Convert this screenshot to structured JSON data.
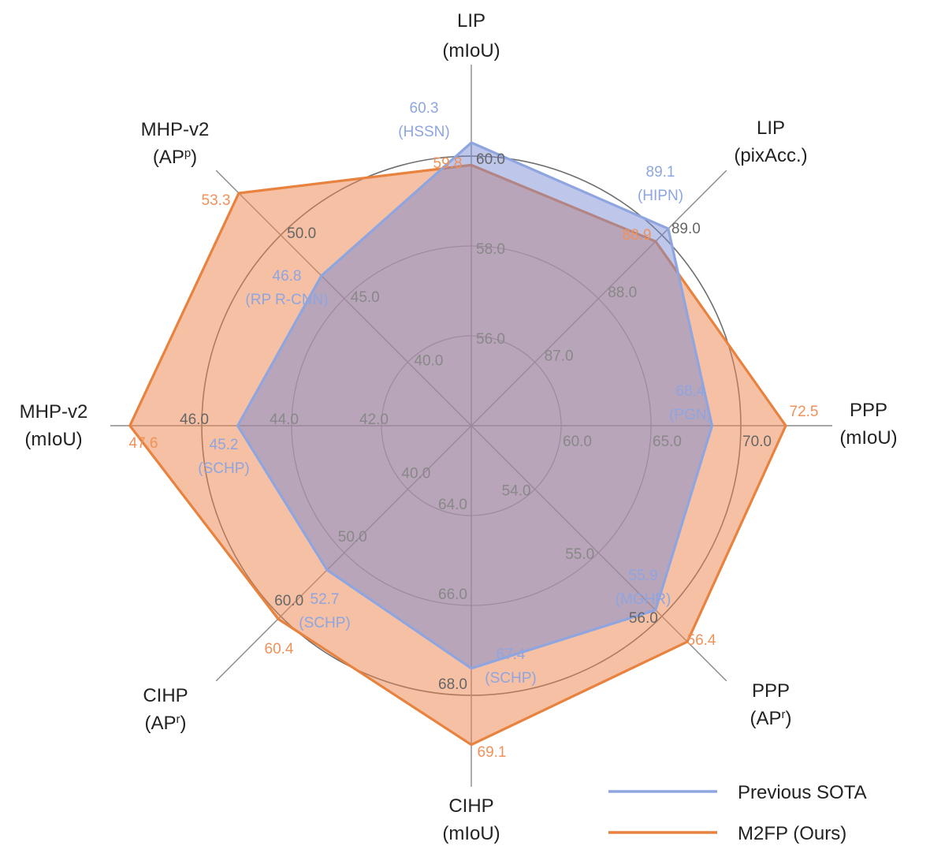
{
  "chart_data": {
    "type": "radar",
    "axes": [
      {
        "id": "lip-miou",
        "label": [
          "LIP",
          "(mIoU)"
        ],
        "ticks": [
          "56.0",
          "58.0",
          "60.0"
        ],
        "min": 54.0,
        "max": 60.0
      },
      {
        "id": "lip-pixacc",
        "label": [
          "LIP",
          "(pixAcc.)"
        ],
        "ticks": [
          "87.0",
          "88.0",
          "89.0"
        ],
        "min": 86.0,
        "max": 89.0
      },
      {
        "id": "ppp-miou",
        "label": [
          "PPP",
          "(mIoU)"
        ],
        "ticks": [
          "60.0",
          "65.0",
          "70.0"
        ],
        "min": 55.0,
        "max": 70.0
      },
      {
        "id": "ppp-apr",
        "label": [
          "PPP",
          "(AP",
          "r",
          ")"
        ],
        "ticks": [
          "54.0",
          "55.0",
          "56.0"
        ],
        "min": 53.0,
        "max": 56.0
      },
      {
        "id": "cihp-miou",
        "label": [
          "CIHP",
          "(mIoU)"
        ],
        "ticks": [
          "64.0",
          "66.0",
          "68.0"
        ],
        "min": 62.0,
        "max": 68.0
      },
      {
        "id": "cihp-apr",
        "label": [
          "CIHP",
          "(AP",
          "r",
          ")"
        ],
        "ticks": [
          "40.0",
          "50.0",
          "60.0"
        ],
        "min": 30.0,
        "max": 60.0
      },
      {
        "id": "mhp-miou",
        "label": [
          "MHP-v2",
          "(mIoU)"
        ],
        "ticks": [
          "42.0",
          "44.0",
          "46.0"
        ],
        "min": 40.0,
        "max": 46.0
      },
      {
        "id": "mhp-app",
        "label": [
          "MHP-v2",
          "(AP",
          "p",
          ")"
        ],
        "ticks": [
          "40.0",
          "45.0",
          "50.0"
        ],
        "min": 35.0,
        "max": 50.0
      }
    ],
    "series": [
      {
        "name": "Previous SOTA",
        "color": "#8ea5e0",
        "values": [
          60.3,
          89.1,
          68.4,
          55.9,
          67.4,
          52.7,
          45.2,
          46.8
        ],
        "methods": [
          "(HSSN)",
          "(HIPN)",
          "(PGN)",
          "(MGHR)",
          "(SCHP)",
          "(SCHP)",
          "(SCHP)",
          "(RP R-CNN)"
        ],
        "value_labels": [
          "60.3",
          "89.1",
          "68.4",
          "55.9",
          "67.4",
          "52.7",
          "45.2",
          "46.8"
        ]
      },
      {
        "name": "M2FP (Ours)",
        "color": "#e8823f",
        "values": [
          59.8,
          88.9,
          72.5,
          56.4,
          69.1,
          60.4,
          47.6,
          53.3
        ],
        "value_labels": [
          "59.8",
          "88.9",
          "72.5",
          "56.4",
          "69.1",
          "60.4",
          "47.6",
          "53.3"
        ]
      }
    ],
    "legend": {
      "position": "bottom-right"
    },
    "grid": true
  }
}
